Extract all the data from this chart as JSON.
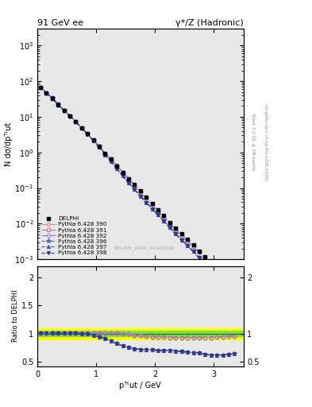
{
  "title_left": "91 GeV ee",
  "title_right": "γ*/Z (Hadronic)",
  "ylabel_main": "N dσ/dpᵀᵗut",
  "ylabel_ratio": "Ratio to DELPHI",
  "xlabel": "pᵀᵗut / GeV",
  "watermark": "DELPHI_1996_S3430090",
  "right_label1": "Rivet 3.1.10, ≥ 3M events",
  "right_label2": "mcplots.cern.ch [arXiv:1306.3436]",
  "ylim_main": [
    0.001,
    3000.0
  ],
  "ylim_ratio": [
    0.42,
    2.2
  ],
  "xlim": [
    0.0,
    3.5
  ],
  "x_data": [
    0.05,
    0.15,
    0.25,
    0.35,
    0.45,
    0.55,
    0.65,
    0.75,
    0.85,
    0.95,
    1.05,
    1.15,
    1.25,
    1.35,
    1.45,
    1.55,
    1.65,
    1.75,
    1.85,
    1.95,
    2.05,
    2.15,
    2.25,
    2.35,
    2.45,
    2.55,
    2.65,
    2.75,
    2.85,
    2.95,
    3.05,
    3.15,
    3.25,
    3.35
  ],
  "delphi_y": [
    65.0,
    47.0,
    33.0,
    22.0,
    15.0,
    10.5,
    7.2,
    4.9,
    3.3,
    2.2,
    1.5,
    0.95,
    0.65,
    0.42,
    0.28,
    0.185,
    0.125,
    0.083,
    0.055,
    0.037,
    0.025,
    0.017,
    0.011,
    0.0075,
    0.0052,
    0.0036,
    0.0025,
    0.0017,
    0.0012,
    0.00083,
    0.00058,
    0.0004,
    0.00028,
    0.0002
  ],
  "delphi_err": [
    2.0,
    1.5,
    1.0,
    0.7,
    0.5,
    0.35,
    0.24,
    0.16,
    0.11,
    0.073,
    0.05,
    0.032,
    0.022,
    0.014,
    0.0093,
    0.0062,
    0.0042,
    0.0028,
    0.0018,
    0.0012,
    0.00083,
    0.00057,
    0.00037,
    0.00025,
    0.00017,
    0.00012,
    8.3e-05,
    5.7e-05,
    4e-05,
    2.8e-05,
    1.9e-05,
    1.3e-05,
    9.3e-06,
    6.6e-06
  ],
  "series": [
    {
      "label": "Pythia 6.428 390",
      "color": "#cc88bb",
      "linestyle": "-.",
      "marker": "o",
      "markersize": 3,
      "fillstyle": "none",
      "ratio_y": [
        1.01,
        1.01,
        1.01,
        1.01,
        1.01,
        1.01,
        1.01,
        1.01,
        1.01,
        1.01,
        1.01,
        1.01,
        1.01,
        1.01,
        1.0,
        0.99,
        0.97,
        0.96,
        0.95,
        0.94,
        0.94,
        0.94,
        0.93,
        0.93,
        0.93,
        0.93,
        0.93,
        0.93,
        0.93,
        0.93,
        0.94,
        0.94,
        0.95,
        0.95
      ]
    },
    {
      "label": "Pythia 6.428 391",
      "color": "#cc7777",
      "linestyle": "-.",
      "marker": "s",
      "markersize": 3,
      "fillstyle": "none",
      "ratio_y": [
        1.01,
        1.01,
        1.01,
        1.01,
        1.01,
        1.01,
        1.01,
        1.01,
        1.01,
        1.01,
        1.01,
        1.01,
        1.01,
        1.01,
        1.0,
        0.99,
        0.97,
        0.96,
        0.95,
        0.94,
        0.94,
        0.94,
        0.93,
        0.93,
        0.93,
        0.93,
        0.93,
        0.93,
        0.93,
        0.93,
        0.94,
        0.94,
        0.95,
        0.95
      ]
    },
    {
      "label": "Pythia 6.428 392",
      "color": "#9977cc",
      "linestyle": "-.",
      "marker": "D",
      "markersize": 3,
      "fillstyle": "none",
      "ratio_y": [
        1.01,
        1.01,
        1.01,
        1.01,
        1.01,
        1.01,
        1.01,
        1.01,
        1.01,
        1.01,
        1.01,
        1.01,
        1.01,
        1.01,
        1.0,
        0.99,
        0.97,
        0.96,
        0.95,
        0.94,
        0.94,
        0.94,
        0.93,
        0.93,
        0.93,
        0.93,
        0.93,
        0.93,
        0.93,
        0.93,
        0.94,
        0.94,
        0.95,
        0.95
      ]
    },
    {
      "label": "Pythia 6.428 396",
      "color": "#5566bb",
      "linestyle": "--",
      "marker": "*",
      "markersize": 4,
      "fillstyle": "full",
      "ratio_y": [
        1.01,
        1.01,
        1.01,
        1.01,
        1.01,
        1.01,
        1.01,
        1.0,
        0.99,
        0.97,
        0.94,
        0.91,
        0.87,
        0.82,
        0.78,
        0.75,
        0.73,
        0.72,
        0.71,
        0.71,
        0.7,
        0.7,
        0.7,
        0.69,
        0.68,
        0.67,
        0.66,
        0.65,
        0.63,
        0.62,
        0.61,
        0.62,
        0.63,
        0.64
      ]
    },
    {
      "label": "Pythia 6.428 397",
      "color": "#4455aa",
      "linestyle": "--",
      "marker": "^",
      "markersize": 3,
      "fillstyle": "full",
      "ratio_y": [
        1.01,
        1.01,
        1.01,
        1.01,
        1.01,
        1.01,
        1.01,
        1.0,
        0.99,
        0.97,
        0.94,
        0.91,
        0.87,
        0.82,
        0.78,
        0.75,
        0.73,
        0.72,
        0.71,
        0.71,
        0.7,
        0.7,
        0.7,
        0.69,
        0.68,
        0.67,
        0.66,
        0.65,
        0.63,
        0.62,
        0.61,
        0.62,
        0.63,
        0.64
      ]
    },
    {
      "label": "Pythia 6.428 398",
      "color": "#333388",
      "linestyle": "--",
      "marker": "v",
      "markersize": 3,
      "fillstyle": "full",
      "ratio_y": [
        1.01,
        1.01,
        1.01,
        1.01,
        1.01,
        1.01,
        1.01,
        1.0,
        0.99,
        0.97,
        0.94,
        0.91,
        0.87,
        0.82,
        0.78,
        0.75,
        0.73,
        0.72,
        0.71,
        0.71,
        0.7,
        0.7,
        0.7,
        0.69,
        0.68,
        0.67,
        0.66,
        0.65,
        0.63,
        0.62,
        0.61,
        0.62,
        0.63,
        0.64
      ]
    }
  ],
  "band_green": 0.05,
  "band_yellow": 0.1,
  "bg_color": "#e8e8e8"
}
